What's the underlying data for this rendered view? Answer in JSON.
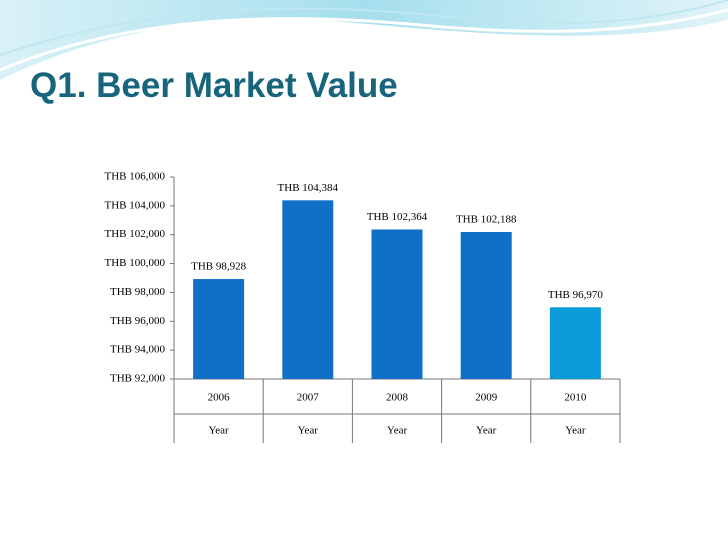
{
  "chart_data": {
    "type": "bar",
    "title": "Q1. Beer Market Value",
    "categories": [
      "2006",
      "2007",
      "2008",
      "2009",
      "2010"
    ],
    "category_group_labels": [
      "Year",
      "Year",
      "Year",
      "Year",
      "Year"
    ],
    "values": [
      98928,
      104384,
      102364,
      102188,
      96970
    ],
    "value_labels": [
      "THB 98,928",
      "THB 104,384",
      "THB 102,364",
      "THB 102,188",
      "THB 96,970"
    ],
    "colors": [
      "#1070c8",
      "#1070c8",
      "#1070c8",
      "#1070c8",
      "#0b9bd8"
    ],
    "ylim": [
      92000,
      106000
    ],
    "yticks": [
      {
        "value": 92000,
        "label": "THB 92,000"
      },
      {
        "value": 94000,
        "label": "THB 94,000"
      },
      {
        "value": 96000,
        "label": "THB 96,000"
      },
      {
        "value": 98000,
        "label": "THB 98,000"
      },
      {
        "value": 100000,
        "label": "THB 100,000"
      },
      {
        "value": 102000,
        "label": "THB 102,000"
      },
      {
        "value": 104000,
        "label": "THB 104,000"
      },
      {
        "value": 106000,
        "label": "THB 106,000"
      }
    ],
    "grid": false
  }
}
